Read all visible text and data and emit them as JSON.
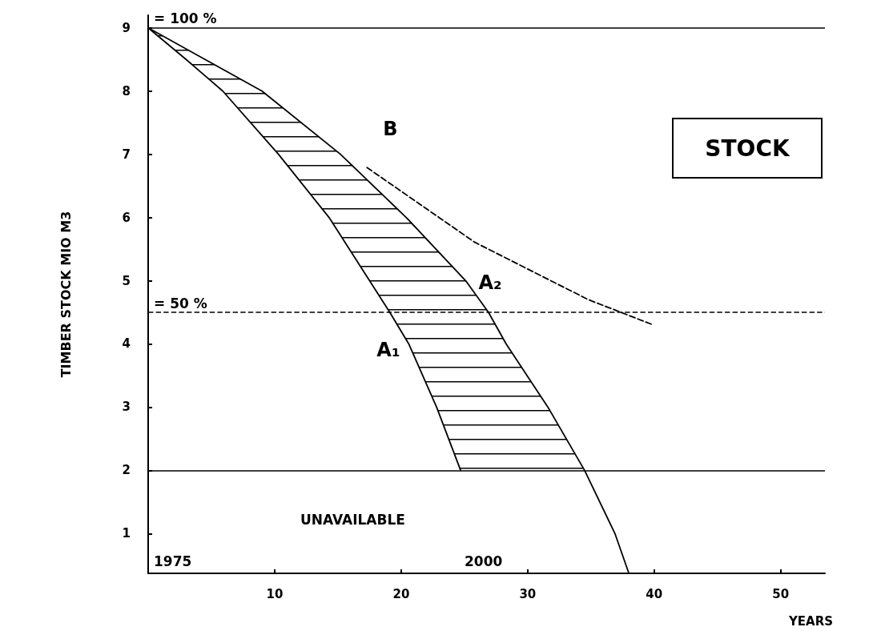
{
  "chart_data": {
    "type": "line",
    "xlabel": "YEARS",
    "ylabel": "TIMBER STOCK MIO M3",
    "series": [
      {
        "name": "A₁",
        "color": "#000000",
        "x": [
          0,
          3,
          5.9,
          10.3,
          14.3,
          17.5,
          19.1,
          20.6,
          22.8,
          24.7
        ],
        "values": [
          9,
          8.5,
          8,
          7,
          6,
          5,
          4.5,
          4,
          3,
          2
        ]
      },
      {
        "name": "A₂",
        "color": "#000000",
        "x": [
          0,
          4.5,
          9.0,
          15.2,
          20.4,
          25.1,
          26.9,
          28.3,
          31.6,
          34.5,
          36.9,
          38.0
        ],
        "values": [
          9,
          8.5,
          8,
          7,
          6,
          5,
          4.5,
          4,
          3,
          2,
          1,
          0.37
        ]
      },
      {
        "name": "B",
        "color": "#000000",
        "line_style": "dashed",
        "x": [
          17.3,
          25.8,
          34.8,
          39.8
        ],
        "values": [
          6.79,
          5.61,
          4.7,
          4.31
        ]
      }
    ],
    "xlim": [
      0,
      53.5
    ],
    "xticks": [
      10,
      20,
      30,
      40,
      50
    ],
    "ylim": [
      0.37,
      9.2
    ],
    "yticks": [
      1,
      2,
      3,
      4,
      5,
      6,
      7,
      8,
      9
    ],
    "marker": "none",
    "grid": false,
    "legend": false,
    "ref_lines": [
      {
        "axis": "y",
        "value": 9,
        "color": "#000000",
        "line_style": "solid"
      },
      {
        "axis": "y",
        "value": 4.5,
        "color": "#000000",
        "line_style": "dashed"
      },
      {
        "axis": "y",
        "value": 2,
        "color": "#000000",
        "line_style": "solid"
      }
    ],
    "annotations": [
      "STOCK",
      "UNAVAILABLE",
      "= 100 %",
      "= 50 %",
      "1975",
      "2000"
    ]
  }
}
